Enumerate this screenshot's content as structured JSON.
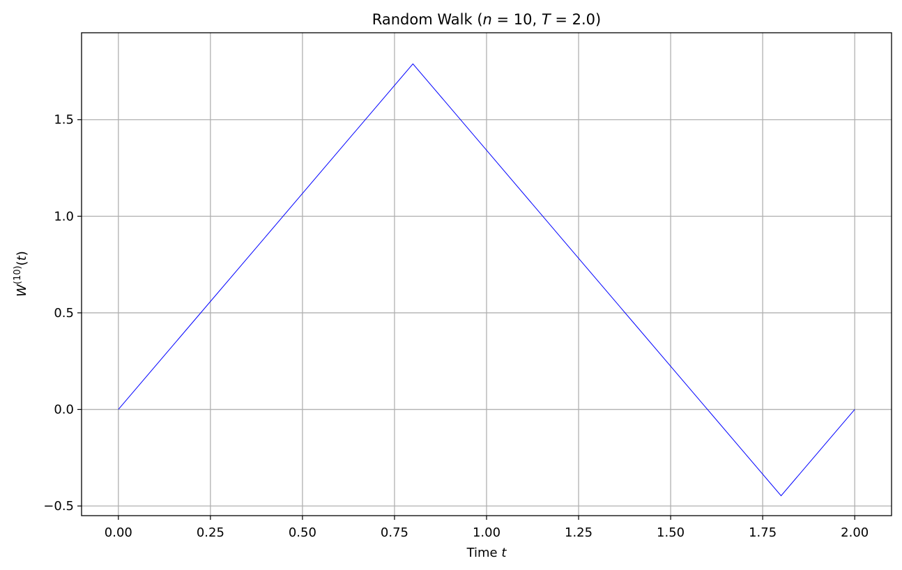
{
  "chart_data": {
    "type": "line",
    "title_parts": {
      "prefix": "Random Walk (",
      "n_var": "n",
      "n_eq": " = 10, ",
      "t_var": "T",
      "t_eq": " = 2.0)"
    },
    "xlabel_parts": {
      "text": "Time ",
      "var": "t"
    },
    "ylabel_parts": {
      "base": "W",
      "sup": "(10)",
      "paren_open": "(",
      "var": "t",
      "paren_close": ")"
    },
    "xlim": [
      -0.1,
      2.1
    ],
    "ylim": [
      -0.55,
      1.95
    ],
    "xticks": [
      0.0,
      0.25,
      0.5,
      0.75,
      1.0,
      1.25,
      1.5,
      1.75,
      2.0
    ],
    "xtick_labels": [
      "0.00",
      "0.25",
      "0.50",
      "0.75",
      "1.00",
      "1.25",
      "1.50",
      "1.75",
      "2.00"
    ],
    "yticks": [
      -0.5,
      0.0,
      0.5,
      1.0,
      1.5
    ],
    "ytick_labels": [
      "−0.5",
      "0.0",
      "0.5",
      "1.0",
      "1.5"
    ],
    "grid": true,
    "series": [
      {
        "color": "#0000ff",
        "x": [
          0.0,
          0.2,
          0.4,
          0.6,
          0.8,
          1.0,
          1.2,
          1.4,
          1.6,
          1.8,
          2.0
        ],
        "y": [
          0.0,
          0.447,
          0.894,
          1.342,
          1.789,
          1.342,
          0.894,
          0.447,
          0.0,
          -0.447,
          0.0
        ]
      }
    ]
  }
}
